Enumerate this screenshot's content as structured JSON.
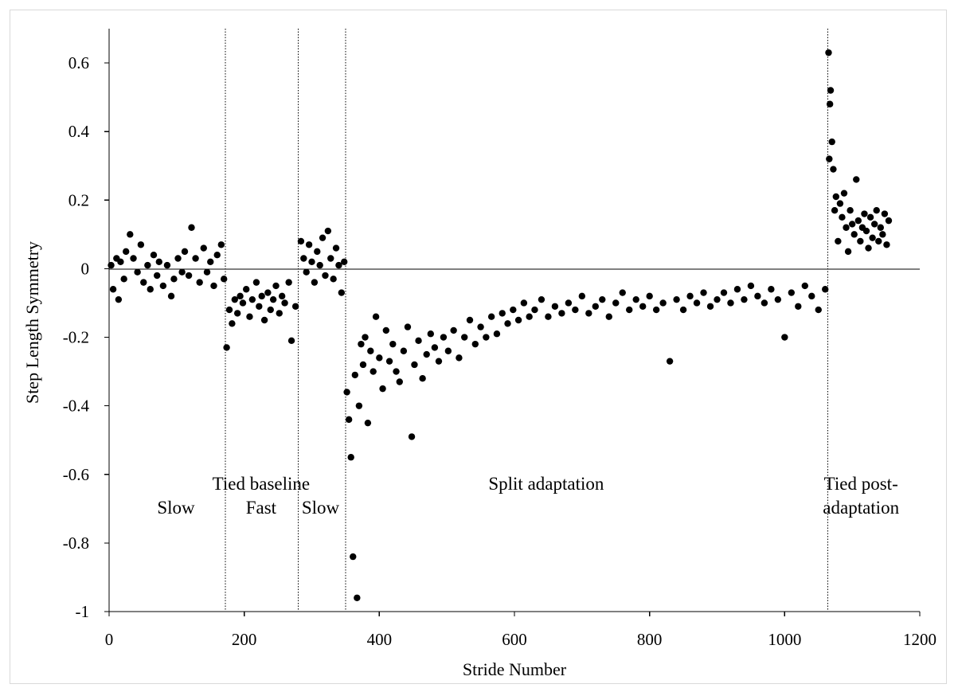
{
  "chart_data": {
    "type": "scatter",
    "xlabel": "Stride Number",
    "ylabel": "Step Length Symmetry",
    "xlim": [
      0,
      1200
    ],
    "ylim": [
      -1,
      0.7
    ],
    "x_ticks": [
      0,
      200,
      400,
      600,
      800,
      1000,
      1200
    ],
    "y_ticks": [
      0.6,
      0.4,
      0.2,
      0,
      -0.2,
      -0.4,
      -0.6,
      -0.8,
      -1
    ],
    "x_tick_labels": [
      "0",
      "200",
      "400",
      "600",
      "800",
      "1000",
      "1200"
    ],
    "y_tick_labels": [
      "0.6",
      "0.4",
      "0.2",
      "0",
      "-0.2",
      "-0.4",
      "-0.6",
      "-0.8",
      "-1"
    ],
    "reference_line_y": 0,
    "phase_boundaries_x": [
      172,
      280,
      350,
      1064
    ],
    "annotations": [
      {
        "text": "Tied baseline",
        "x": 225,
        "y": -0.645,
        "anchor": "middle"
      },
      {
        "text": "Slow",
        "x": 99,
        "y": -0.714,
        "anchor": "middle"
      },
      {
        "text": "Fast",
        "x": 225,
        "y": -0.714,
        "anchor": "middle"
      },
      {
        "text": "Slow",
        "x": 313,
        "y": -0.714,
        "anchor": "middle"
      },
      {
        "text": "Split adaptation",
        "x": 647,
        "y": -0.645,
        "anchor": "middle"
      },
      {
        "text": "Tied post-",
        "x": 1113,
        "y": -0.645,
        "anchor": "middle"
      },
      {
        "text": "adaptation",
        "x": 1113,
        "y": -0.714,
        "anchor": "middle"
      }
    ],
    "grid": false,
    "series": [
      {
        "segments": [
          {
            "x": [
              3,
              6,
              11,
              14,
              17,
              22,
              25,
              31,
              36,
              42,
              47,
              51,
              57,
              61,
              66,
              71,
              74,
              80,
              86,
              92,
              96,
              102,
              108,
              112,
              118,
              122,
              128,
              134,
              140,
              145,
              150,
              155,
              160,
              166,
              170
            ],
            "y": [
              0.01,
              -0.06,
              0.03,
              -0.09,
              0.02,
              -0.03,
              0.05,
              0.1,
              0.03,
              -0.01,
              0.07,
              -0.04,
              0.01,
              -0.06,
              0.04,
              -0.02,
              0.02,
              -0.05,
              0.01,
              -0.08,
              -0.03,
              0.03,
              -0.01,
              0.05,
              -0.02,
              0.12,
              0.03,
              -0.04,
              0.06,
              -0.01,
              0.02,
              -0.05,
              0.04,
              0.07,
              -0.03
            ]
          },
          {
            "x": [
              174,
              178,
              182,
              186,
              190,
              194,
              198,
              203,
              208,
              212,
              218,
              222,
              226,
              230,
              235,
              239,
              243,
              247,
              252,
              256,
              260,
              266,
              270,
              276
            ],
            "y": [
              -0.23,
              -0.12,
              -0.16,
              -0.09,
              -0.13,
              -0.08,
              -0.1,
              -0.06,
              -0.14,
              -0.09,
              -0.04,
              -0.11,
              -0.08,
              -0.15,
              -0.07,
              -0.12,
              -0.09,
              -0.05,
              -0.13,
              -0.08,
              -0.1,
              -0.04,
              -0.21,
              -0.11
            ]
          },
          {
            "x": [
              284,
              288,
              292,
              296,
              300,
              304,
              308,
              312,
              316,
              320,
              324,
              328,
              332,
              336,
              340,
              344,
              348
            ],
            "y": [
              0.08,
              0.03,
              -0.01,
              0.07,
              0.02,
              -0.04,
              0.05,
              0.01,
              0.09,
              -0.02,
              0.11,
              0.03,
              -0.03,
              0.06,
              0.01,
              -0.07,
              0.02
            ]
          },
          {
            "x": [
              352,
              355,
              358,
              361,
              364,
              367,
              370,
              373,
              376,
              379,
              383,
              387,
              391,
              395,
              400,
              405,
              410,
              415,
              420,
              425,
              430,
              436,
              442,
              448,
              452,
              458,
              464,
              470,
              476,
              482,
              488,
              495,
              502,
              510,
              518,
              526,
              534,
              542,
              550,
              558,
              566,
              574,
              582,
              590,
              598,
              606,
              614,
              622,
              630,
              640,
              650,
              660,
              670,
              680,
              690,
              700,
              710,
              720,
              730,
              740,
              750,
              760,
              770,
              780,
              790,
              800,
              810,
              820,
              830,
              840,
              850,
              860,
              870,
              880,
              890,
              900,
              910,
              920,
              930,
              940,
              950,
              960,
              970,
              980,
              990,
              1000,
              1010,
              1020,
              1030,
              1040,
              1050,
              1060
            ],
            "y": [
              -0.36,
              -0.44,
              -0.55,
              -0.84,
              -0.31,
              -0.96,
              -0.4,
              -0.22,
              -0.28,
              -0.2,
              -0.45,
              -0.24,
              -0.3,
              -0.14,
              -0.26,
              -0.35,
              -0.18,
              -0.27,
              -0.22,
              -0.3,
              -0.33,
              -0.24,
              -0.17,
              -0.49,
              -0.28,
              -0.21,
              -0.32,
              -0.25,
              -0.19,
              -0.23,
              -0.27,
              -0.2,
              -0.24,
              -0.18,
              -0.26,
              -0.2,
              -0.15,
              -0.22,
              -0.17,
              -0.2,
              -0.14,
              -0.19,
              -0.13,
              -0.16,
              -0.12,
              -0.15,
              -0.1,
              -0.14,
              -0.12,
              -0.09,
              -0.14,
              -0.11,
              -0.13,
              -0.1,
              -0.12,
              -0.08,
              -0.13,
              -0.11,
              -0.09,
              -0.14,
              -0.1,
              -0.07,
              -0.12,
              -0.09,
              -0.11,
              -0.08,
              -0.12,
              -0.1,
              -0.27,
              -0.09,
              -0.12,
              -0.08,
              -0.1,
              -0.07,
              -0.11,
              -0.09,
              -0.07,
              -0.1,
              -0.06,
              -0.09,
              -0.05,
              -0.08,
              -0.1,
              -0.06,
              -0.09,
              -0.2,
              -0.07,
              -0.11,
              -0.05,
              -0.08,
              -0.12,
              -0.06
            ]
          },
          {
            "x": [
              1065,
              1066,
              1067,
              1068,
              1070,
              1072,
              1074,
              1076,
              1079,
              1082,
              1085,
              1088,
              1091,
              1094,
              1097,
              1100,
              1103,
              1106,
              1109,
              1112,
              1115,
              1118,
              1121,
              1124,
              1127,
              1130,
              1133,
              1136,
              1139,
              1142,
              1145,
              1148,
              1151,
              1154
            ],
            "y": [
              0.63,
              0.32,
              0.48,
              0.52,
              0.37,
              0.29,
              0.17,
              0.21,
              0.08,
              0.19,
              0.15,
              0.22,
              0.12,
              0.05,
              0.17,
              0.13,
              0.1,
              0.26,
              0.14,
              0.08,
              0.12,
              0.16,
              0.11,
              0.06,
              0.15,
              0.09,
              0.13,
              0.17,
              0.08,
              0.12,
              0.1,
              0.16,
              0.07,
              0.14
            ]
          }
        ]
      }
    ]
  }
}
